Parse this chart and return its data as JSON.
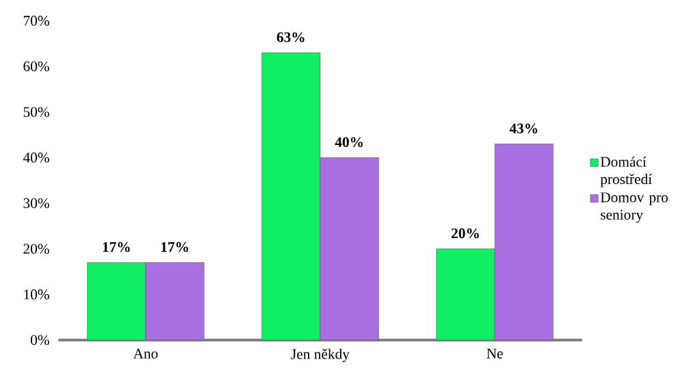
{
  "chart_data": {
    "type": "bar",
    "categories": [
      "Ano",
      "Jen někdy",
      "Ne"
    ],
    "series": [
      {
        "name": "Domácí prostředí",
        "color": "#11ee66",
        "values": [
          17,
          63,
          20
        ],
        "value_labels": [
          "17%",
          "63%",
          "20%"
        ]
      },
      {
        "name": "Domov pro seniory",
        "color": "#a870e0",
        "values": [
          17,
          40,
          43
        ],
        "value_labels": [
          "17%",
          "40%",
          "43%"
        ]
      }
    ],
    "ylim": [
      0,
      70
    ],
    "yticks": [
      {
        "value": 0,
        "label": "0%"
      },
      {
        "value": 10,
        "label": "10%"
      },
      {
        "value": 20,
        "label": "20%"
      },
      {
        "value": 30,
        "label": "30%"
      },
      {
        "value": 40,
        "label": "40%"
      },
      {
        "value": 50,
        "label": "50%"
      },
      {
        "value": 60,
        "label": "60%"
      },
      {
        "value": 70,
        "label": "70%"
      }
    ],
    "legend": "right"
  }
}
